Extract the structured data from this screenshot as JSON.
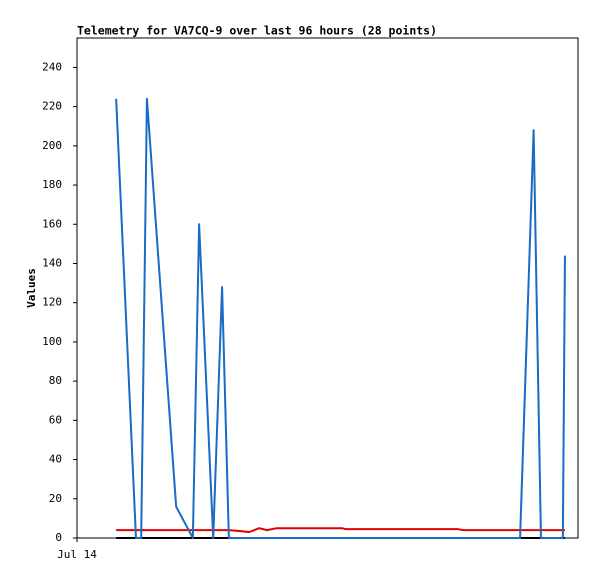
{
  "chart_data": {
    "type": "line",
    "title": "Telemetry for VA7CQ-9 over last 96 hours (28 points)",
    "y_label": "Values",
    "x": [
      7.5,
      11.3,
      12.3,
      13.4,
      19.0,
      22.2,
      23.4,
      26.1,
      27.8,
      29.1,
      31.4,
      33.0,
      34.9,
      36.4,
      38.3,
      44.0,
      50.8,
      51.5,
      58.0,
      65.0,
      73.0,
      74.0,
      80.0,
      84.9,
      87.5,
      88.9,
      93.1,
      93.5
    ],
    "series": [
      {
        "color": "#000000",
        "values": [
          0,
          0,
          0,
          0,
          0,
          0,
          0,
          0,
          0,
          0,
          0,
          0,
          0,
          0,
          0,
          0,
          0,
          0,
          0,
          0,
          0,
          0,
          0,
          0,
          0,
          0,
          0,
          0
        ]
      },
      {
        "color": "#e00000",
        "values": [
          4,
          4,
          4,
          4,
          4,
          4,
          4,
          4,
          4,
          4,
          3.5,
          3,
          5,
          4,
          5,
          5,
          5,
          4.5,
          4.5,
          4.5,
          4.5,
          4,
          4,
          4,
          4,
          4,
          4,
          4
        ]
      },
      {
        "color": "#1a6bc4",
        "values": [
          224,
          0,
          0,
          224,
          16,
          0,
          160,
          0,
          128,
          0,
          0,
          0,
          0,
          0,
          0,
          0,
          0,
          0,
          0,
          0,
          0,
          0,
          0,
          0,
          208,
          0,
          0,
          144
        ]
      }
    ],
    "xlim": [
      0,
      96
    ],
    "xticks": [
      {
        "value": 0,
        "label": "Jul 14"
      }
    ],
    "ylim": [
      0,
      255
    ],
    "yticks": [
      0,
      20,
      40,
      60,
      80,
      100,
      120,
      140,
      160,
      180,
      200,
      220,
      240
    ],
    "grid": false
  }
}
